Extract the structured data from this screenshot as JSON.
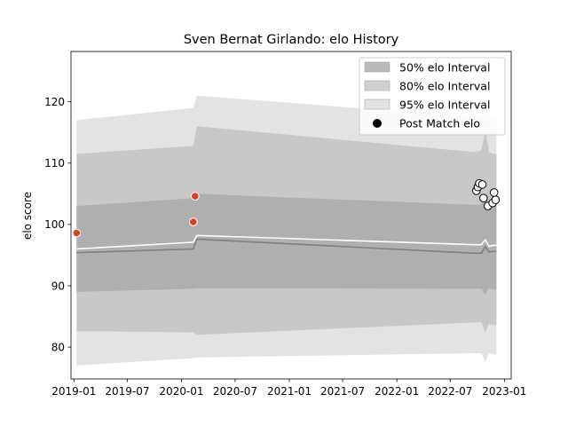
{
  "chart_data": {
    "type": "line",
    "title": "Sven Bernat Girlando: elo History",
    "xlabel": "",
    "ylabel": "elo score",
    "ylim": [
      74.8,
      128.2
    ],
    "xlim": [
      "2018-12-22",
      "2023-01-24"
    ],
    "yticks": [
      80,
      90,
      100,
      110,
      120
    ],
    "xticks": [
      "2019-01",
      "2019-07",
      "2020-01",
      "2020-07",
      "2021-01",
      "2021-07",
      "2022-01",
      "2022-07",
      "2023-01"
    ],
    "grid": false,
    "legend_position": "top-right",
    "legend": [
      {
        "label": "50% elo Interval",
        "kind": "band",
        "color": "#a9a9a9",
        "opacity": 0.8
      },
      {
        "label": "80% elo Interval",
        "kind": "band",
        "color": "#bcbcbc",
        "opacity": 0.7
      },
      {
        "label": "95% elo Interval",
        "kind": "band",
        "color": "#d7d7d7",
        "opacity": 0.7
      },
      {
        "label": "Post Match elo",
        "kind": "marker",
        "color": "#000000"
      }
    ],
    "x": [
      "2019-01-10",
      "2020-02-10",
      "2020-02-22",
      "2022-09-20",
      "2022-10-15",
      "2022-10-28",
      "2022-11-10",
      "2022-11-22",
      "2022-12-05"
    ],
    "series": [
      {
        "name": "50% elo Interval",
        "role": "band",
        "color": "#a9a9a9",
        "lower": [
          89.0,
          89.5,
          89.6,
          89.5,
          89.5,
          88.6,
          89.6,
          89.4,
          89.4
        ],
        "upper": [
          103.0,
          104.3,
          105.0,
          103.2,
          103.3,
          104.5,
          103.1,
          103.0,
          103.0
        ]
      },
      {
        "name": "80% elo Interval",
        "role": "band",
        "color": "#bcbcbc",
        "lower": [
          82.6,
          82.4,
          82.0,
          84.0,
          84.0,
          82.4,
          83.8,
          83.6,
          83.6
        ],
        "upper": [
          111.5,
          112.8,
          116.0,
          111.8,
          112.0,
          115.5,
          111.8,
          111.5,
          111.5
        ]
      },
      {
        "name": "95% elo Interval",
        "role": "band",
        "color": "#d7d7d7",
        "lower": [
          77.0,
          78.2,
          78.3,
          79.0,
          79.0,
          77.5,
          79.0,
          78.8,
          78.8
        ],
        "upper": [
          117.0,
          119.0,
          121.0,
          117.5,
          117.5,
          121.0,
          117.5,
          117.0,
          117.0
        ]
      },
      {
        "name": "",
        "role": "line",
        "color": "#808080",
        "values": [
          95.4,
          96.0,
          97.6,
          95.3,
          95.3,
          96.4,
          95.5,
          95.6,
          95.6
        ]
      },
      {
        "name": "",
        "role": "line",
        "color": "#ffffff",
        "values": [
          96.0,
          97.1,
          98.2,
          96.7,
          96.7,
          97.5,
          96.4,
          96.6,
          96.6
        ]
      },
      {
        "name": "Post Match elo",
        "role": "points",
        "points": [
          {
            "x": "2019-01-10",
            "y": 98.6,
            "fill": "#d9402b"
          },
          {
            "x": "2020-02-10",
            "y": 100.4,
            "fill": "#d9402b"
          },
          {
            "x": "2020-02-16",
            "y": 104.6,
            "fill": "#d9402b"
          },
          {
            "x": "2022-09-28",
            "y": 105.5,
            "fill": "#ffffff"
          },
          {
            "x": "2022-10-03",
            "y": 106.1,
            "fill": "#ffffff"
          },
          {
            "x": "2022-10-08",
            "y": 106.7,
            "fill": "#ffffff"
          },
          {
            "x": "2022-10-18",
            "y": 106.5,
            "fill": "#ffffff"
          },
          {
            "x": "2022-10-22",
            "y": 104.3,
            "fill": "#ffffff"
          },
          {
            "x": "2022-11-06",
            "y": 103.0,
            "fill": "#ffffff"
          },
          {
            "x": "2022-11-22",
            "y": 103.5,
            "fill": "#ffffff"
          },
          {
            "x": "2022-11-27",
            "y": 105.2,
            "fill": "#ffffff"
          },
          {
            "x": "2022-12-02",
            "y": 104.0,
            "fill": "#ffffff"
          }
        ]
      }
    ]
  }
}
